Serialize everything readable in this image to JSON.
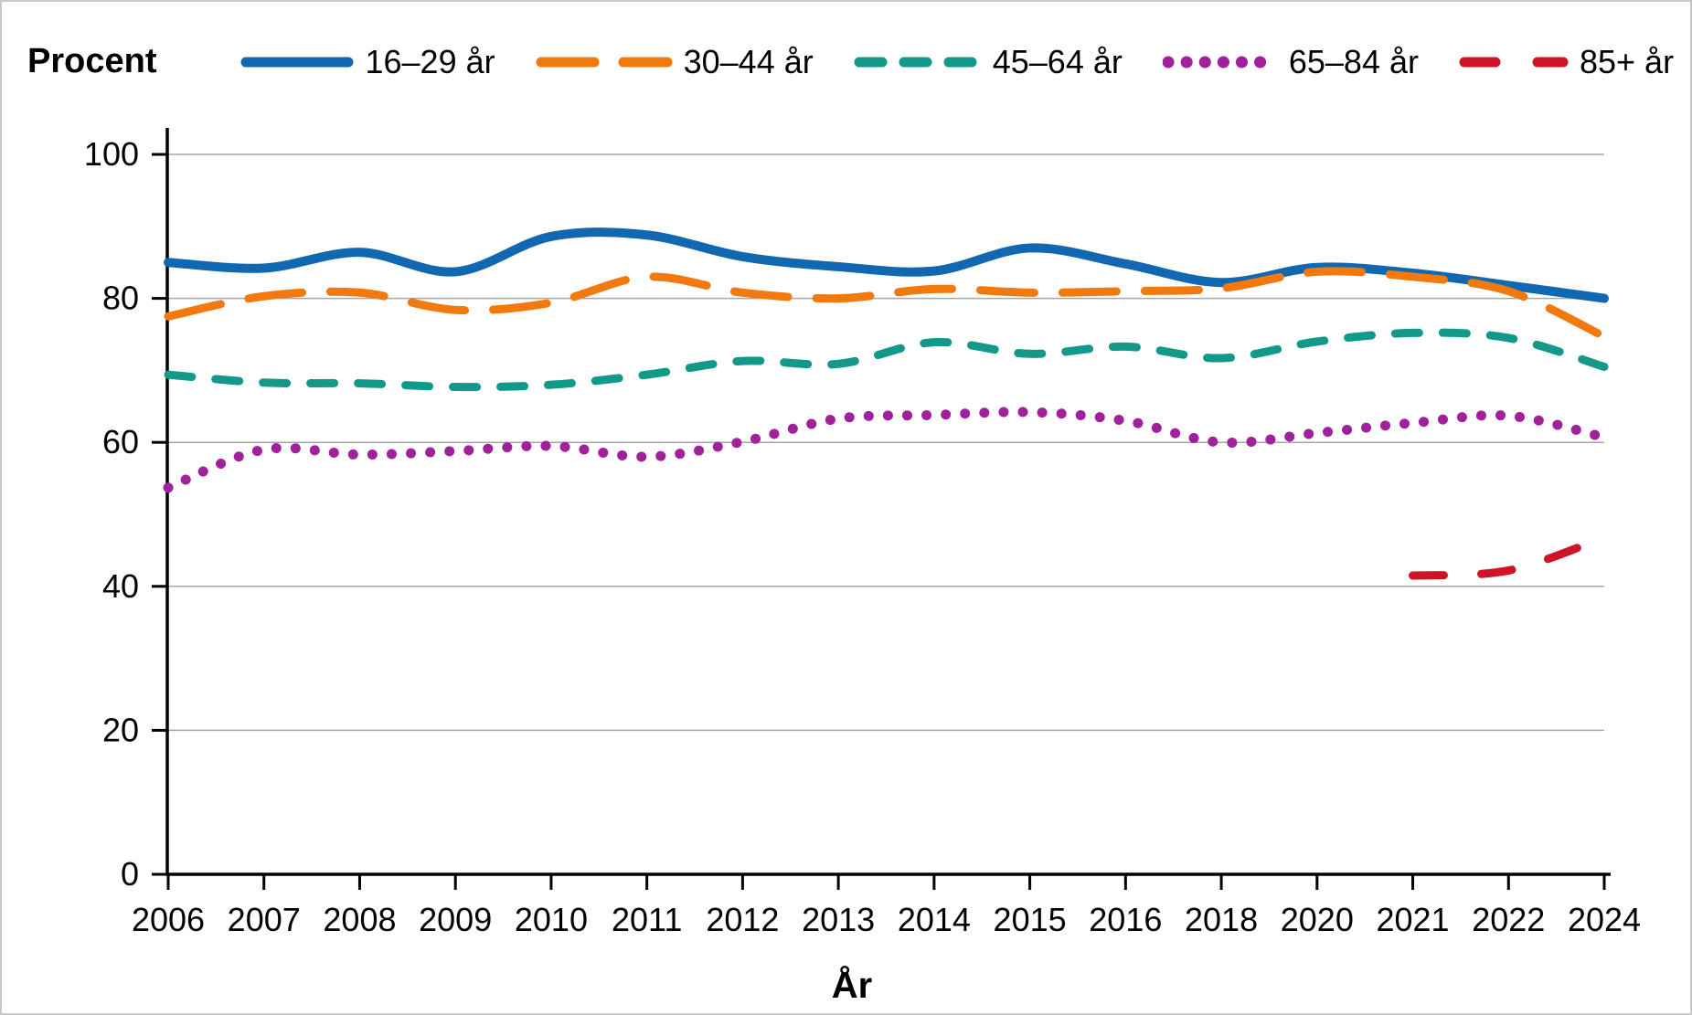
{
  "figure": {
    "y_axis_title": "Procent",
    "x_axis_title": "År"
  },
  "legend": [
    {
      "label": "16–29 år",
      "color": "#1267b1",
      "style": "solid"
    },
    {
      "label": "30–44 år",
      "color": "#f2790d",
      "style": "long-dash"
    },
    {
      "label": "45–64 år",
      "color": "#12998a",
      "style": "dash"
    },
    {
      "label": "65–84 år",
      "color": "#a0219b",
      "style": "dot"
    },
    {
      "label": "85+ år",
      "color": "#ce1526",
      "style": "sparse-dash"
    }
  ],
  "chart_data": {
    "type": "line",
    "title": "",
    "xlabel": "År",
    "ylabel": "Procent",
    "ylim": [
      0,
      100
    ],
    "y_ticks": [
      0,
      20,
      40,
      60,
      80,
      100
    ],
    "grid": "horizontal",
    "grid_color": "#a6a6a6",
    "axis_color": "#000000",
    "legend_position": "top",
    "categories": [
      "2006",
      "2007",
      "2008",
      "2009",
      "2010",
      "2011",
      "2012",
      "2013",
      "2014",
      "2015",
      "2016",
      "2018",
      "2020",
      "2021",
      "2022",
      "2024"
    ],
    "series": [
      {
        "name": "16–29 år",
        "color": "#1267b1",
        "line_style": "solid",
        "values": [
          85,
          84.2,
          86.4,
          83.7,
          88.6,
          88.8,
          85.8,
          84.4,
          83.8,
          87,
          84.8,
          82.2,
          84.3,
          83.5,
          81.8,
          80
        ]
      },
      {
        "name": "30–44 år",
        "color": "#f2790d",
        "line_style": "dashed",
        "values": [
          77.5,
          80.3,
          80.8,
          78.4,
          79.4,
          83,
          80.8,
          80,
          81.3,
          80.8,
          81,
          81.4,
          83.7,
          83,
          81,
          74.7
        ]
      },
      {
        "name": "45–64 år",
        "color": "#12998a",
        "line_style": "dashed",
        "values": [
          69.4,
          68.3,
          68.2,
          67.7,
          68,
          69.4,
          71.3,
          70.9,
          73.9,
          72.3,
          73.3,
          71.7,
          74,
          75.2,
          74.5,
          70.5
        ]
      },
      {
        "name": "65–84 år",
        "color": "#a0219b",
        "line_style": "dotted",
        "values": [
          53.7,
          59,
          58.3,
          58.8,
          59.5,
          58,
          60.1,
          63.3,
          63.8,
          64.2,
          63,
          60,
          61.3,
          62.7,
          63.7,
          60.7
        ]
      },
      {
        "name": "85+ år",
        "color": "#ce1526",
        "line_style": "dashed",
        "values": [
          null,
          null,
          null,
          null,
          null,
          null,
          null,
          null,
          null,
          null,
          null,
          null,
          null,
          41.5,
          42.2,
          46.8
        ]
      }
    ]
  }
}
